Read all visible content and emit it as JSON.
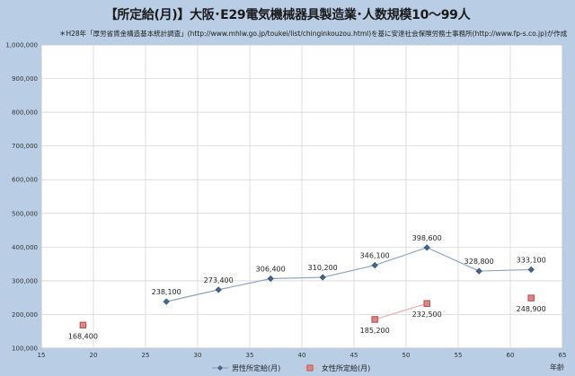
{
  "chart_data": {
    "type": "line",
    "title": "【所定給(月)】大阪･E29電気機械器具製造業･人数規模10～99人",
    "subtitle": "＊H28年「厚労省賃金構造基本統計調査」(http://www.mhlw.go.jp/toukei/list/chinginkouzou.html)を基に安達社会保険労務士事務所(http://www.fp-s.co.jp)が作成",
    "xlabel": "年齢",
    "ylabel": "",
    "xlim": [
      15,
      65
    ],
    "ylim": [
      100000,
      1000000
    ],
    "x_ticks": [
      "15",
      "20",
      "25",
      "30",
      "35",
      "40",
      "45",
      "50",
      "55",
      "60",
      "65"
    ],
    "y_ticks": [
      "100,000",
      "200,000",
      "300,000",
      "400,000",
      "500,000",
      "600,000",
      "700,000",
      "800,000",
      "900,000",
      "1,000,000"
    ],
    "grid": true,
    "legend_position": "bottom",
    "series": [
      {
        "name": "男性所定給(月)",
        "color": "#44648c",
        "marker": "diamond",
        "x": [
          27,
          32,
          37,
          42,
          47,
          52,
          57,
          62
        ],
        "values": [
          238100,
          273400,
          306400,
          310200,
          346100,
          398600,
          328800,
          333100
        ],
        "labels": [
          "238,100",
          "273,400",
          "306,400",
          "310,200",
          "346,100",
          "398,600",
          "328,800",
          "333,100"
        ]
      },
      {
        "name": "女性所定給(月)",
        "color": "#c0504d",
        "marker": "square",
        "x": [
          19,
          47,
          52,
          62
        ],
        "values": [
          168400,
          185200,
          232500,
          248900
        ],
        "labels": [
          "168,400",
          "185,200",
          "232,500",
          "248,900"
        ],
        "connect_pairs": [
          [
            1,
            2
          ]
        ]
      }
    ]
  }
}
